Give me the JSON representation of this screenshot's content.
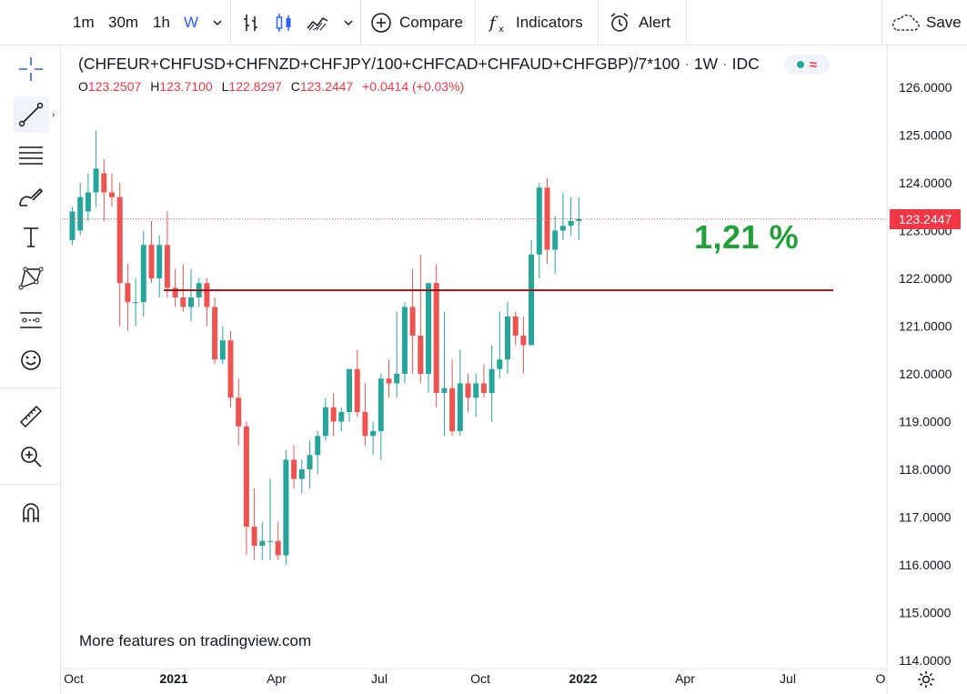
{
  "toolbar": {
    "intervals": [
      "1m",
      "30m",
      "1h",
      "W"
    ],
    "compare_label": "Compare",
    "indicators_label": "Indicators",
    "alert_label": "Alert",
    "save_label": "Save"
  },
  "left_toolbar": {
    "icons": [
      "crosshair-icon",
      "trend-line-icon",
      "fib-retracement-icon",
      "brush-icon",
      "text-icon",
      "pattern-icon",
      "forecast-icon",
      "emoji-icon",
      "ruler-icon",
      "zoom-in-icon",
      "magnet-icon"
    ]
  },
  "legend": {
    "title": "(CHFEUR+CHFUSD+CHFNZD+CHFJPY/100+CHFCAD+CHFAUD+CHFGBP)/7*100",
    "interval": "1W",
    "source": "IDC",
    "o_label": "O",
    "o_value": "123.2507",
    "h_label": "H",
    "h_value": "123.7100",
    "l_label": "L",
    "l_value": "122.8297",
    "c_label": "C",
    "c_value": "123.2447",
    "change": "+0.0414 (+0.03%)"
  },
  "annotation": "1,21 %",
  "watermark": "More features on tradingview.com",
  "last_price": "123.2447",
  "colors": {
    "up": "#26a69a",
    "down": "#ef5350",
    "accent": "#2962ff",
    "hline": "#8b1a1a",
    "annotation": "#21a038"
  },
  "chart_data": {
    "type": "candlestick",
    "y_ticks": [
      "126.0000",
      "125.0000",
      "124.0000",
      "123.0000",
      "122.0000",
      "121.0000",
      "120.0000",
      "119.0000",
      "118.0000",
      "117.0000",
      "116.0000",
      "115.0000",
      "114.0000"
    ],
    "x_ticks": [
      "Oct",
      "2021",
      "Apr",
      "Jul",
      "Oct",
      "2022",
      "Apr",
      "Jul",
      "O"
    ],
    "horizontal_line": 121.75,
    "last_price": 123.2447,
    "candles": [
      [
        122.8,
        123.5,
        122.7,
        123.4
      ],
      [
        123.0,
        124.0,
        122.9,
        123.7
      ],
      [
        123.4,
        124.2,
        123.2,
        123.8
      ],
      [
        123.8,
        125.1,
        123.5,
        124.3
      ],
      [
        124.2,
        124.5,
        123.2,
        123.8
      ],
      [
        123.8,
        124.2,
        123.5,
        123.7
      ],
      [
        123.7,
        124.0,
        121.0,
        121.9
      ],
      [
        121.9,
        122.3,
        120.9,
        121.5
      ],
      [
        121.5,
        122.0,
        121.0,
        121.5
      ],
      [
        121.5,
        123.0,
        121.2,
        122.7
      ],
      [
        122.7,
        123.2,
        121.9,
        122.0
      ],
      [
        122.0,
        122.9,
        121.6,
        122.7
      ],
      [
        122.7,
        123.4,
        121.6,
        121.8
      ],
      [
        121.8,
        122.2,
        121.4,
        121.6
      ],
      [
        121.6,
        122.3,
        121.3,
        121.4
      ],
      [
        121.4,
        122.2,
        121.1,
        121.6
      ],
      [
        121.6,
        122.0,
        121.4,
        121.9
      ],
      [
        121.9,
        122.0,
        121.0,
        121.4
      ],
      [
        121.4,
        121.6,
        120.2,
        120.3
      ],
      [
        120.3,
        121.0,
        120.2,
        120.7
      ],
      [
        120.7,
        120.9,
        119.3,
        119.5
      ],
      [
        119.5,
        119.9,
        118.5,
        118.9
      ],
      [
        118.9,
        119.0,
        116.2,
        116.8
      ],
      [
        116.8,
        117.6,
        116.1,
        116.4
      ],
      [
        116.4,
        116.9,
        116.1,
        116.5
      ],
      [
        116.5,
        117.8,
        116.1,
        116.5
      ],
      [
        116.5,
        116.9,
        116.1,
        116.2
      ],
      [
        116.2,
        118.4,
        116.0,
        118.2
      ],
      [
        118.2,
        118.5,
        117.6,
        117.8
      ],
      [
        117.8,
        118.2,
        117.5,
        118.0
      ],
      [
        118.0,
        118.6,
        117.6,
        118.3
      ],
      [
        118.3,
        118.8,
        117.9,
        118.7
      ],
      [
        118.7,
        119.5,
        118.6,
        119.3
      ],
      [
        119.3,
        119.6,
        118.7,
        119.0
      ],
      [
        119.0,
        119.3,
        118.8,
        119.2
      ],
      [
        119.2,
        120.1,
        119.0,
        120.1
      ],
      [
        120.1,
        120.5,
        119.1,
        119.2
      ],
      [
        119.2,
        119.8,
        118.5,
        118.7
      ],
      [
        118.7,
        119.0,
        118.3,
        118.8
      ],
      [
        118.8,
        120.0,
        118.2,
        119.9
      ],
      [
        119.9,
        120.3,
        119.5,
        119.8
      ],
      [
        119.8,
        121.3,
        119.5,
        120.0
      ],
      [
        120.0,
        121.5,
        119.8,
        121.4
      ],
      [
        121.4,
        122.2,
        120.0,
        120.8
      ],
      [
        120.8,
        122.5,
        119.8,
        120.0
      ],
      [
        120.0,
        121.9,
        119.6,
        121.9
      ],
      [
        121.9,
        122.3,
        119.3,
        119.6
      ],
      [
        119.6,
        121.3,
        118.7,
        119.7
      ],
      [
        119.7,
        120.3,
        118.7,
        118.8
      ],
      [
        118.8,
        120.5,
        118.7,
        119.8
      ],
      [
        119.8,
        120.0,
        119.2,
        119.5
      ],
      [
        119.5,
        120.0,
        119.1,
        119.8
      ],
      [
        119.8,
        120.2,
        119.5,
        119.6
      ],
      [
        119.6,
        120.6,
        119.0,
        120.1
      ],
      [
        120.1,
        121.3,
        119.9,
        120.3
      ],
      [
        120.3,
        121.5,
        120.0,
        121.2
      ],
      [
        121.2,
        121.3,
        120.6,
        120.8
      ],
      [
        120.8,
        121.2,
        120.0,
        120.6
      ],
      [
        120.6,
        122.8,
        120.6,
        122.5
      ],
      [
        122.5,
        124.0,
        122.0,
        123.9
      ],
      [
        123.9,
        124.1,
        122.3,
        122.6
      ],
      [
        122.6,
        123.3,
        122.1,
        123.0
      ],
      [
        123.0,
        123.8,
        122.8,
        123.1
      ],
      [
        123.1,
        123.7,
        122.9,
        123.2
      ],
      [
        123.2,
        123.7,
        122.8,
        123.2447
      ]
    ]
  }
}
